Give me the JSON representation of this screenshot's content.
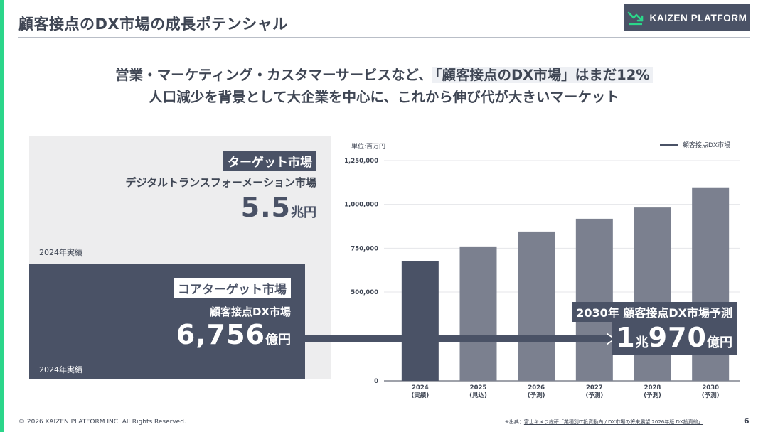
{
  "slide": {
    "title": "顧客接点のDX市場の成長ポテンシャル",
    "logo_text": "KAIZEN PLATFORM",
    "page_number": "6"
  },
  "lead": {
    "line1_before": "営業・マーケティング・カスタマーサービスなど、",
    "line1_highlight": "「顧客接点のDX市場」はまだ12%",
    "line2": "人口減少を背景として大企業を中心に、これから伸び代が大きいマーケット"
  },
  "target_market": {
    "tag": "ターゲット市場",
    "name": "デジタルトランスフォーメーション市場",
    "value": "5.5",
    "unit": "兆円",
    "year_note": "2024年実績"
  },
  "core_market": {
    "tag": "コアターゲット市場",
    "name": "顧客接点DX市場",
    "value": "6,756",
    "unit": "億円",
    "year_note": "2024年実績"
  },
  "forecast": {
    "tag": "2030年 顧客接点DX市場予測",
    "value_1": "1",
    "unit_1": "兆",
    "value_2": "970",
    "unit_2": "億円"
  },
  "chart_data": {
    "type": "bar",
    "unit_label": "単位:百万円",
    "legend": "顧客接点DX市場",
    "categories": [
      "2024",
      "2025",
      "2026",
      "2027",
      "2028",
      "2030"
    ],
    "category_notes": [
      "(実績)",
      "(見込)",
      "(予測)",
      "(予測)",
      "(予測)",
      "(予測)"
    ],
    "values": [
      675600,
      760000,
      845000,
      918000,
      982000,
      1097000
    ],
    "y_ticks": [
      "0",
      "500,000",
      "750,000",
      "1,000,000",
      "1,250,000"
    ],
    "y_tick_values": [
      0,
      500000,
      750000,
      1000000,
      1250000
    ],
    "ylim": [
      0,
      1250000
    ],
    "y_axis_broken": true,
    "colors": {
      "actual": "#4a5266",
      "forecast": "#7b808f"
    }
  },
  "footer": {
    "copyright": "© 2026 KAIZEN PLATFORM INC. All Rights Reserved.",
    "source_prefix": "※出典：",
    "source_text": "富士キメラ総研「業種別IT投資動向 / DX市場の将来展望 2026年版 DX投資編」"
  }
}
